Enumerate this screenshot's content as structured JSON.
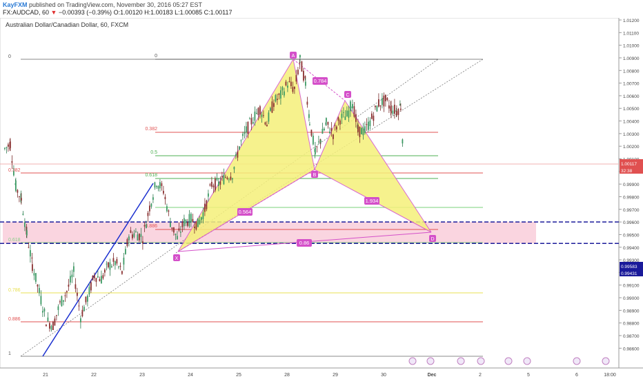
{
  "header": {
    "user": "KayFXM",
    "published": "published on TradingView.com, November 30, 2016 05:27 EST",
    "symbol": "FX:AUDCAD, 60",
    "change_arrow": "▼",
    "change": "−0.00393 (−0.39%)",
    "ohlc": "O:1.00120 H:1.00183 L:1.00085 C:1.00117"
  },
  "pane_title": "Australian Dollar/Canadian Dollar, 60, FXCM",
  "chart_data": {
    "type": "candlestick",
    "ylim": [
      0.9855,
      1.0125
    ],
    "y_ticks": [
      "1.01200",
      "1.01100",
      "1.01000",
      "1.00900",
      "1.00800",
      "1.00700",
      "1.00600",
      "1.00500",
      "1.00400",
      "1.00300",
      "1.00200",
      "1.00100",
      "1.00000",
      "0.99900",
      "0.99800",
      "0.99700",
      "0.99600",
      "0.99500",
      "0.99400",
      "0.99300",
      "0.99200",
      "0.99100",
      "0.99000",
      "0.98900",
      "0.98800",
      "0.98700",
      "0.98600"
    ],
    "x_ticks": [
      "21",
      "22",
      "23",
      "24",
      "25",
      "28",
      "29",
      "30",
      "Dec",
      "2",
      "5",
      "6",
      "18:00"
    ],
    "last_price": "1.00117",
    "countdown": "32:38",
    "zone_labels": [
      "0.99583",
      "0.99431"
    ],
    "pattern_points": [
      "X",
      "A",
      "B",
      "C",
      "D"
    ],
    "ratios": [
      "0.784",
      "0.564",
      "1.934",
      "0.86"
    ],
    "fib_levels": [
      "0",
      "0.382",
      "0.5",
      "0.618",
      "0.886"
    ],
    "fib_left": [
      "0",
      "0.382",
      "0.618",
      "0.786",
      "0.886",
      "1"
    ],
    "colors": {
      "up": "#2d7a4f",
      "down": "#7a2a2a",
      "pattern_fill": "#f5f07a",
      "pattern_line": "#d44fc9",
      "zone": "#f8c7d6",
      "blue": "#1a2fcf"
    }
  }
}
